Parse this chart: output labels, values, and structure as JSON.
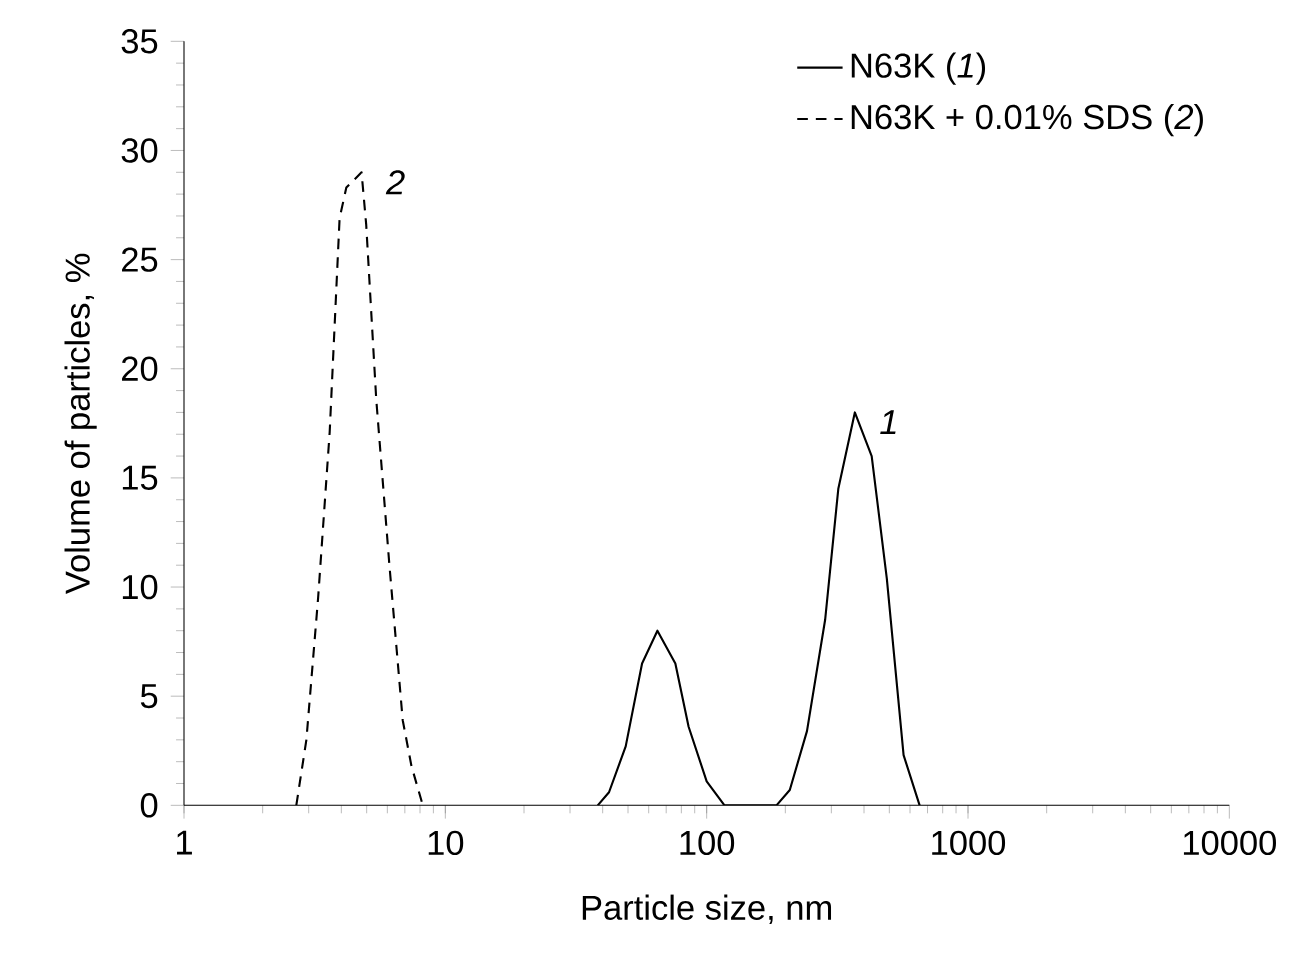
{
  "chart_data": {
    "type": "line",
    "xlabel": "Particle size, nm",
    "ylabel": "Volume of particles, %",
    "log": "x",
    "xlim": [
      1,
      10000
    ],
    "xticks": [
      1,
      10,
      100,
      1000,
      10000
    ],
    "ylim": [
      0,
      35
    ],
    "yticks": [
      0,
      5,
      10,
      15,
      20,
      25,
      30,
      35
    ],
    "grid": false,
    "legend": "top right",
    "marker": "none",
    "series": [
      {
        "name": "N63K (*1*)",
        "color": "#000000",
        "line_style": "solid",
        "x": [
          38.3,
          42.3,
          49,
          56.6,
          64.8,
          75.9,
          85.3,
          100,
          117,
          185,
          208,
          242,
          284,
          319,
          369,
          428,
          489,
          567,
          653
        ],
        "values": [
          0,
          0.6,
          2.7,
          6.5,
          8,
          6.5,
          3.6,
          1.1,
          0,
          0,
          0.7,
          3.4,
          8.5,
          14.5,
          18,
          16,
          10.4,
          2.3,
          0
        ]
      },
      {
        "name": "N63K + 0.01% SDS (*2*)",
        "color": "#000000",
        "line_style": "dashed",
        "x": [
          2.69,
          2.94,
          3.26,
          3.61,
          3.94,
          4.18,
          4.78,
          4.98,
          5.44,
          6.11,
          6.87,
          7.42,
          8.2
        ],
        "values": [
          0,
          3,
          9.5,
          17.1,
          26.9,
          28.3,
          29,
          26.6,
          18.6,
          11,
          3.9,
          1.8,
          0
        ]
      }
    ],
    "annotations": [
      {
        "text": "*1*",
        "x": 369,
        "y": 18
      },
      {
        "text": "*2*",
        "x": 4.78,
        "y": 29
      }
    ]
  }
}
